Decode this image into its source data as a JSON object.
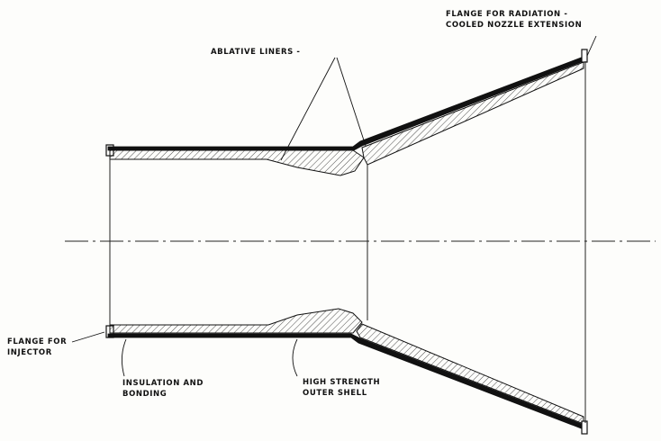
{
  "labels": {
    "ablative_liners": "ABLATIVE LINERS -",
    "flange_radiation_line1": "FLANGE FOR RADIATION -",
    "flange_radiation_line2": "COOLED NOZZLE EXTENSION",
    "flange_injector_line1": "FLANGE FOR",
    "flange_injector_line2": "INJECTOR",
    "insulation_line1": "INSULATION AND",
    "insulation_line2": "BONDING",
    "shell_line1": "HIGH STRENGTH",
    "shell_line2": "OUTER SHELL"
  },
  "colors": {
    "ink": "#111111",
    "paper": "#fdfdfb"
  }
}
